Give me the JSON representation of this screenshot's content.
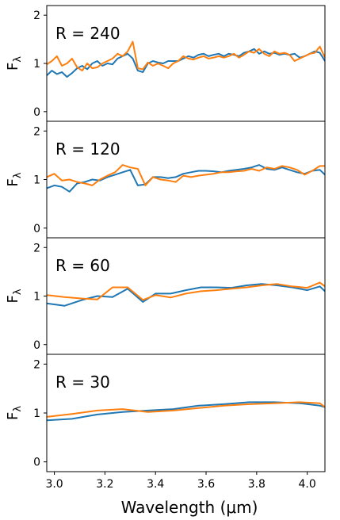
{
  "chart_data": [
    {
      "type": "line",
      "annotation": "R = 240",
      "ylabel": "F",
      "ylabel_sub": "λ",
      "xlim": [
        2.97,
        4.07
      ],
      "ylim": [
        -0.2,
        2.2
      ],
      "yticks": [
        0,
        1,
        2
      ],
      "grid": false,
      "series": [
        {
          "color": "#1f77b4",
          "x": [
            2.97,
            2.99,
            3.01,
            3.03,
            3.05,
            3.07,
            3.09,
            3.11,
            3.13,
            3.15,
            3.17,
            3.19,
            3.21,
            3.23,
            3.25,
            3.27,
            3.29,
            3.31,
            3.33,
            3.35,
            3.37,
            3.39,
            3.41,
            3.43,
            3.45,
            3.47,
            3.49,
            3.51,
            3.53,
            3.55,
            3.57,
            3.59,
            3.61,
            3.63,
            3.65,
            3.67,
            3.69,
            3.71,
            3.73,
            3.75,
            3.77,
            3.79,
            3.81,
            3.83,
            3.85,
            3.87,
            3.89,
            3.91,
            3.93,
            3.95,
            3.97,
            3.99,
            4.01,
            4.03,
            4.05,
            4.07
          ],
          "y": [
            0.75,
            0.85,
            0.78,
            0.82,
            0.72,
            0.8,
            0.9,
            0.95,
            0.88,
            1.0,
            1.05,
            0.95,
            1.0,
            0.98,
            1.1,
            1.15,
            1.2,
            1.1,
            0.85,
            0.82,
            1.0,
            1.05,
            1.02,
            1.0,
            1.05,
            1.05,
            1.05,
            1.1,
            1.15,
            1.12,
            1.18,
            1.2,
            1.15,
            1.18,
            1.2,
            1.15,
            1.2,
            1.18,
            1.15,
            1.22,
            1.25,
            1.3,
            1.2,
            1.25,
            1.2,
            1.22,
            1.18,
            1.2,
            1.18,
            1.2,
            1.12,
            1.15,
            1.2,
            1.25,
            1.22,
            1.05
          ]
        },
        {
          "color": "#ff7f0e",
          "x": [
            2.97,
            2.99,
            3.01,
            3.03,
            3.05,
            3.07,
            3.09,
            3.11,
            3.13,
            3.15,
            3.17,
            3.19,
            3.21,
            3.23,
            3.25,
            3.27,
            3.29,
            3.31,
            3.33,
            3.35,
            3.37,
            3.39,
            3.41,
            3.43,
            3.45,
            3.47,
            3.49,
            3.51,
            3.53,
            3.55,
            3.57,
            3.59,
            3.61,
            3.63,
            3.65,
            3.67,
            3.69,
            3.71,
            3.73,
            3.75,
            3.77,
            3.79,
            3.81,
            3.83,
            3.85,
            3.87,
            3.89,
            3.91,
            3.93,
            3.95,
            3.97,
            3.99,
            4.01,
            4.03,
            4.05,
            4.07
          ],
          "y": [
            0.98,
            1.05,
            1.15,
            0.95,
            1.0,
            1.1,
            0.92,
            0.85,
            1.0,
            0.9,
            0.92,
            1.0,
            1.05,
            1.1,
            1.2,
            1.15,
            1.25,
            1.45,
            0.9,
            0.88,
            1.02,
            0.95,
            1.0,
            0.95,
            0.9,
            1.0,
            1.05,
            1.15,
            1.1,
            1.08,
            1.12,
            1.15,
            1.1,
            1.12,
            1.15,
            1.12,
            1.15,
            1.2,
            1.12,
            1.18,
            1.25,
            1.22,
            1.3,
            1.2,
            1.15,
            1.25,
            1.2,
            1.22,
            1.18,
            1.05,
            1.1,
            1.15,
            1.2,
            1.22,
            1.35,
            1.12
          ]
        }
      ]
    },
    {
      "type": "line",
      "annotation": "R = 120",
      "ylabel": "F",
      "ylabel_sub": "λ",
      "xlim": [
        2.97,
        4.07
      ],
      "ylim": [
        -0.2,
        2.2
      ],
      "yticks": [
        0,
        1,
        2
      ],
      "grid": false,
      "series": [
        {
          "color": "#1f77b4",
          "x": [
            2.97,
            3.0,
            3.03,
            3.06,
            3.09,
            3.12,
            3.15,
            3.18,
            3.21,
            3.24,
            3.27,
            3.3,
            3.33,
            3.36,
            3.39,
            3.42,
            3.45,
            3.48,
            3.51,
            3.54,
            3.57,
            3.6,
            3.63,
            3.66,
            3.69,
            3.72,
            3.75,
            3.78,
            3.81,
            3.84,
            3.87,
            3.9,
            3.93,
            3.96,
            3.99,
            4.02,
            4.05,
            4.07
          ],
          "y": [
            0.82,
            0.88,
            0.85,
            0.75,
            0.92,
            0.95,
            1.0,
            0.98,
            1.05,
            1.1,
            1.15,
            1.2,
            0.88,
            0.9,
            1.05,
            1.05,
            1.03,
            1.05,
            1.12,
            1.15,
            1.18,
            1.18,
            1.17,
            1.15,
            1.18,
            1.2,
            1.22,
            1.25,
            1.3,
            1.22,
            1.2,
            1.25,
            1.2,
            1.15,
            1.12,
            1.18,
            1.2,
            1.1
          ]
        },
        {
          "color": "#ff7f0e",
          "x": [
            2.97,
            3.0,
            3.03,
            3.06,
            3.09,
            3.12,
            3.15,
            3.18,
            3.21,
            3.24,
            3.27,
            3.3,
            3.33,
            3.36,
            3.39,
            3.42,
            3.45,
            3.48,
            3.51,
            3.54,
            3.57,
            3.6,
            3.63,
            3.66,
            3.69,
            3.72,
            3.75,
            3.78,
            3.81,
            3.84,
            3.87,
            3.9,
            3.93,
            3.96,
            3.99,
            4.02,
            4.05,
            4.07
          ],
          "y": [
            1.05,
            1.12,
            0.98,
            1.0,
            0.95,
            0.92,
            0.88,
            1.0,
            1.08,
            1.15,
            1.3,
            1.25,
            1.22,
            0.88,
            1.05,
            1.0,
            0.98,
            0.95,
            1.08,
            1.05,
            1.08,
            1.1,
            1.12,
            1.15,
            1.15,
            1.17,
            1.18,
            1.22,
            1.18,
            1.25,
            1.22,
            1.28,
            1.25,
            1.2,
            1.1,
            1.18,
            1.28,
            1.28
          ]
        }
      ]
    },
    {
      "type": "line",
      "annotation": "R = 60",
      "ylabel": "F",
      "ylabel_sub": "λ",
      "xlim": [
        2.97,
        4.07
      ],
      "ylim": [
        -0.2,
        2.2
      ],
      "yticks": [
        0,
        1,
        2
      ],
      "grid": false,
      "series": [
        {
          "color": "#1f77b4",
          "x": [
            2.97,
            3.04,
            3.11,
            3.17,
            3.23,
            3.29,
            3.35,
            3.4,
            3.46,
            3.52,
            3.58,
            3.64,
            3.7,
            3.76,
            3.82,
            3.88,
            3.94,
            4.0,
            4.05,
            4.07
          ],
          "y": [
            0.85,
            0.8,
            0.92,
            1.0,
            0.98,
            1.15,
            0.88,
            1.05,
            1.05,
            1.12,
            1.18,
            1.18,
            1.17,
            1.22,
            1.25,
            1.22,
            1.18,
            1.12,
            1.2,
            1.1
          ]
        },
        {
          "color": "#ff7f0e",
          "x": [
            2.97,
            3.04,
            3.11,
            3.17,
            3.23,
            3.29,
            3.35,
            3.4,
            3.46,
            3.52,
            3.58,
            3.64,
            3.7,
            3.76,
            3.82,
            3.88,
            3.94,
            4.0,
            4.05,
            4.07
          ],
          "y": [
            1.02,
            0.98,
            0.95,
            0.93,
            1.18,
            1.18,
            0.92,
            1.02,
            0.97,
            1.05,
            1.1,
            1.12,
            1.15,
            1.18,
            1.22,
            1.25,
            1.2,
            1.17,
            1.28,
            1.2
          ]
        }
      ]
    },
    {
      "type": "line",
      "annotation": "R = 30",
      "ylabel": "F",
      "ylabel_sub": "λ",
      "xlabel": "Wavelength (μm)",
      "xlim": [
        2.97,
        4.07
      ],
      "xticks": [
        3.0,
        3.2,
        3.4,
        3.6,
        3.8,
        4.0
      ],
      "xticklabels": [
        "3.0",
        "3.2",
        "3.4",
        "3.6",
        "3.8",
        "4.0"
      ],
      "ylim": [
        -0.2,
        2.2
      ],
      "yticks": [
        0,
        1,
        2
      ],
      "grid": false,
      "series": [
        {
          "color": "#1f77b4",
          "x": [
            2.97,
            3.07,
            3.17,
            3.27,
            3.37,
            3.47,
            3.57,
            3.67,
            3.77,
            3.87,
            3.97,
            4.05,
            4.07
          ],
          "y": [
            0.85,
            0.88,
            0.97,
            1.02,
            1.05,
            1.08,
            1.15,
            1.18,
            1.22,
            1.22,
            1.2,
            1.15,
            1.12
          ]
        },
        {
          "color": "#ff7f0e",
          "x": [
            2.97,
            3.07,
            3.17,
            3.27,
            3.37,
            3.47,
            3.57,
            3.67,
            3.77,
            3.87,
            3.97,
            4.05,
            4.07
          ],
          "y": [
            0.92,
            0.98,
            1.05,
            1.08,
            1.02,
            1.05,
            1.1,
            1.15,
            1.18,
            1.2,
            1.22,
            1.2,
            1.12
          ]
        }
      ]
    }
  ]
}
